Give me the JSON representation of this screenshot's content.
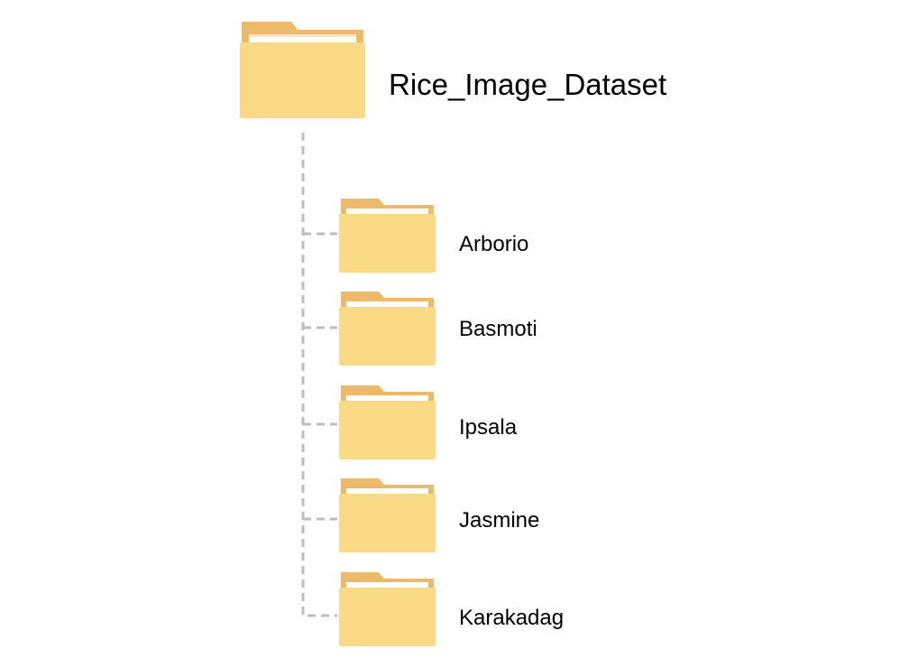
{
  "root": {
    "label": "Rice_Image_Dataset",
    "icon": "folder-icon"
  },
  "children": [
    {
      "label": "Arborio",
      "icon": "folder-icon"
    },
    {
      "label": "Basmoti",
      "icon": "folder-icon"
    },
    {
      "label": "Ipsala",
      "icon": "folder-icon"
    },
    {
      "label": "Jasmine",
      "icon": "folder-icon"
    },
    {
      "label": "Karakadag",
      "icon": "folder-icon"
    }
  ],
  "colors": {
    "folder_front": "#FBDA85",
    "folder_back": "#EDB96A",
    "folder_paper": "#FFFFFF",
    "connector": "#BDBDBD",
    "text": "#000000"
  }
}
